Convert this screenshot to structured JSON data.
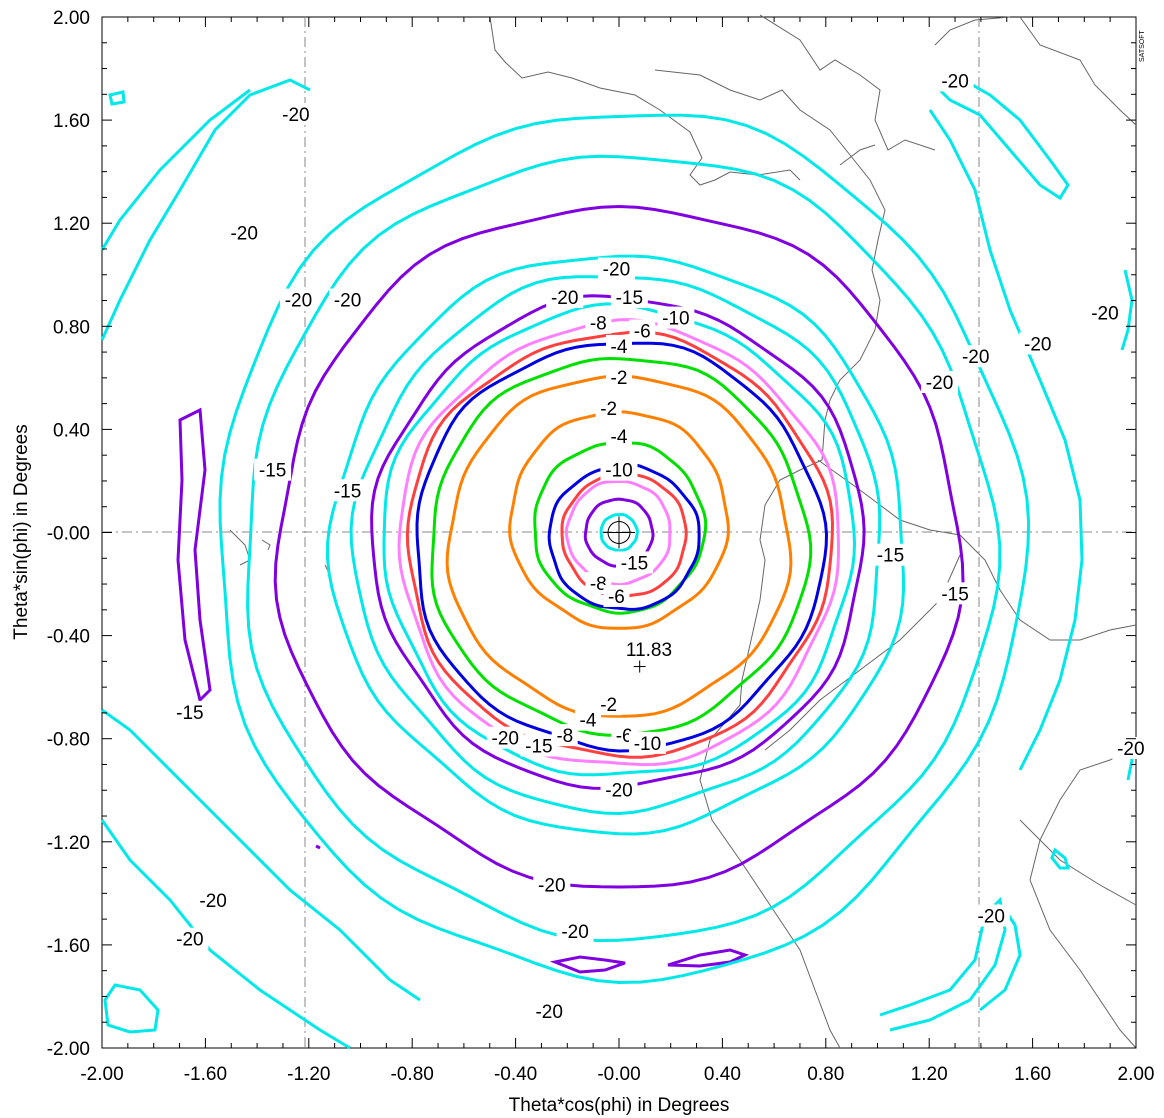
{
  "chart_data": {
    "type": "contour",
    "xlabel": "Theta*cos(phi) in Degrees",
    "ylabel": "Theta*sin(phi) in Degrees",
    "xlim": [
      -2.0,
      2.0
    ],
    "ylim": [
      -2.0,
      2.0
    ],
    "xticks": [
      "-2.00",
      "-1.60",
      "-1.20",
      "-0.80",
      "-0.40",
      "-0.00",
      "0.40",
      "0.80",
      "1.20",
      "1.60",
      "2.00"
    ],
    "yticks": [
      "2.00",
      "1.60",
      "1.20",
      "0.80",
      "0.40",
      "-0.00",
      "-0.40",
      "-0.80",
      "-1.20",
      "-1.60",
      "-2.00"
    ],
    "corner_tag": "SATSOFT",
    "level_colors": {
      "-2": "#ff8000",
      "-4": "#00e000",
      "-6": "#0000e0",
      "-8": "#ff4040",
      "-10": "#ff80ff",
      "-15": "#00e8e8",
      "-20": "#8000e0"
    },
    "peak": {
      "label": "11.83",
      "x": 0.08,
      "y": -0.52
    },
    "boresight": {
      "x": 0.0,
      "y": 0.0
    },
    "main_lobe_contours": [
      {
        "level": -2,
        "color": "#ff8000",
        "center": [
          0.0,
          -0.05
        ],
        "rx": 0.66,
        "ry": 0.66
      },
      {
        "level": -4,
        "color": "#00e000",
        "center": [
          0.0,
          -0.05
        ],
        "rx": 0.73,
        "ry": 0.73
      },
      {
        "level": -6,
        "color": "#0000e0",
        "center": [
          0.0,
          -0.05
        ],
        "rx": 0.79,
        "ry": 0.79
      },
      {
        "level": -8,
        "color": "#ff4040",
        "center": [
          0.0,
          -0.05
        ],
        "rx": 0.82,
        "ry": 0.82
      },
      {
        "level": -10,
        "color": "#ff80ff",
        "center": [
          0.0,
          -0.05
        ],
        "rx": 0.85,
        "ry": 0.86
      },
      {
        "level": -15,
        "color": "#00e8e8",
        "center": [
          0.0,
          -0.04
        ],
        "rx": 0.91,
        "ry": 0.91
      },
      {
        "level": -20,
        "color": "#8000e0",
        "center": [
          0.0,
          -0.04
        ],
        "rx": 0.95,
        "ry": 0.95
      },
      {
        "level": -15,
        "color": "#00e8e8",
        "center": [
          0.0,
          -0.04
        ],
        "rx": 1.02,
        "ry": 1.04
      },
      {
        "level": -20,
        "color": "#00e8e8",
        "center": [
          0.0,
          -0.04
        ],
        "rx": 1.11,
        "ry": 1.12
      },
      {
        "level": -20,
        "color": "#8000e0",
        "center": [
          0.0,
          -0.05
        ],
        "rx": 1.32,
        "ry": 1.32
      },
      {
        "level": -20,
        "color": "#00e8e8",
        "center": [
          0.0,
          -0.05
        ],
        "rx": 1.45,
        "ry": 1.52
      },
      {
        "level": -20,
        "color": "#00e8e8",
        "center": [
          0.0,
          -0.05
        ],
        "rx": 1.56,
        "ry": 1.68
      }
    ],
    "inner_contours": [
      {
        "level": -2,
        "color": "#ff8000",
        "center": [
          0.0,
          0.05
        ],
        "rx": 0.42,
        "ry": 0.42
      },
      {
        "level": -4,
        "color": "#00e000",
        "center": [
          0.0,
          0.02
        ],
        "rx": 0.33,
        "ry": 0.33
      },
      {
        "level": -6,
        "color": "#0000e0",
        "center": [
          0.02,
          -0.02
        ],
        "rx": 0.29,
        "ry": 0.28
      },
      {
        "level": -8,
        "color": "#ff4040",
        "center": [
          0.02,
          -0.01
        ],
        "rx": 0.24,
        "ry": 0.24
      },
      {
        "level": -10,
        "color": "#ff80ff",
        "center": [
          0.0,
          0.0
        ],
        "rx": 0.2,
        "ry": 0.2
      },
      {
        "level": -20,
        "color": "#8000e0",
        "center": [
          0.0,
          0.0
        ],
        "rx": 0.13,
        "ry": 0.13
      },
      {
        "level": -15,
        "color": "#00e8e8",
        "center": [
          0.0,
          0.0
        ],
        "rx": 0.07,
        "ry": 0.07
      }
    ],
    "contour_labels": [
      {
        "text": "-20",
        "x": -1.25,
        "y": 1.62
      },
      {
        "text": "-20",
        "x": -1.45,
        "y": 1.16
      },
      {
        "text": "-20",
        "x": -1.24,
        "y": 0.9
      },
      {
        "text": "-20",
        "x": -1.05,
        "y": 0.9
      },
      {
        "text": "-20",
        "x": 1.3,
        "y": 1.75
      },
      {
        "text": "-20",
        "x": 1.88,
        "y": 0.85
      },
      {
        "text": "-20",
        "x": 1.62,
        "y": 0.73
      },
      {
        "text": "-20",
        "x": 1.38,
        "y": 0.68
      },
      {
        "text": "-20",
        "x": 1.24,
        "y": 0.58
      },
      {
        "text": "-20",
        "x": -0.01,
        "y": 1.02
      },
      {
        "text": "-20",
        "x": -0.21,
        "y": 0.91
      },
      {
        "text": "-15",
        "x": 0.04,
        "y": 0.91
      },
      {
        "text": "-10",
        "x": 0.22,
        "y": 0.83
      },
      {
        "text": "-8",
        "x": -0.08,
        "y": 0.81
      },
      {
        "text": "-6",
        "x": 0.09,
        "y": 0.78
      },
      {
        "text": "-4",
        "x": 0.0,
        "y": 0.72
      },
      {
        "text": "-2",
        "x": 0.0,
        "y": 0.6
      },
      {
        "text": "-2",
        "x": -0.04,
        "y": 0.48
      },
      {
        "text": "-4",
        "x": 0.0,
        "y": 0.37
      },
      {
        "text": "-10",
        "x": 0.0,
        "y": 0.24
      },
      {
        "text": "-15",
        "x": 0.06,
        "y": -0.12
      },
      {
        "text": "-8",
        "x": -0.08,
        "y": -0.2
      },
      {
        "text": "-6",
        "x": -0.01,
        "y": -0.25
      },
      {
        "text": "-15",
        "x": -1.34,
        "y": 0.24
      },
      {
        "text": "-15",
        "x": -1.05,
        "y": 0.16
      },
      {
        "text": "-15",
        "x": -1.66,
        "y": -0.7
      },
      {
        "text": "-15",
        "x": 1.05,
        "y": -0.09
      },
      {
        "text": "-15",
        "x": 1.3,
        "y": -0.24
      },
      {
        "text": "-2",
        "x": -0.04,
        "y": -0.67
      },
      {
        "text": "-4",
        "x": -0.12,
        "y": -0.73
      },
      {
        "text": "-6",
        "x": 0.02,
        "y": -0.79
      },
      {
        "text": "-8",
        "x": -0.21,
        "y": -0.79
      },
      {
        "text": "-10",
        "x": 0.11,
        "y": -0.82
      },
      {
        "text": "-15",
        "x": -0.31,
        "y": -0.83
      },
      {
        "text": "-20",
        "x": -0.44,
        "y": -0.8
      },
      {
        "text": "-20",
        "x": 0.0,
        "y": -1.0
      },
      {
        "text": "-20",
        "x": -0.26,
        "y": -1.37
      },
      {
        "text": "-20",
        "x": -0.17,
        "y": -1.55
      },
      {
        "text": "-20",
        "x": -0.27,
        "y": -1.86
      },
      {
        "text": "-20",
        "x": -1.57,
        "y": -1.43
      },
      {
        "text": "-20",
        "x": -1.66,
        "y": -1.58
      },
      {
        "text": "-20",
        "x": 1.44,
        "y": -1.49
      },
      {
        "text": "-20",
        "x": 1.98,
        "y": -0.84
      }
    ]
  }
}
